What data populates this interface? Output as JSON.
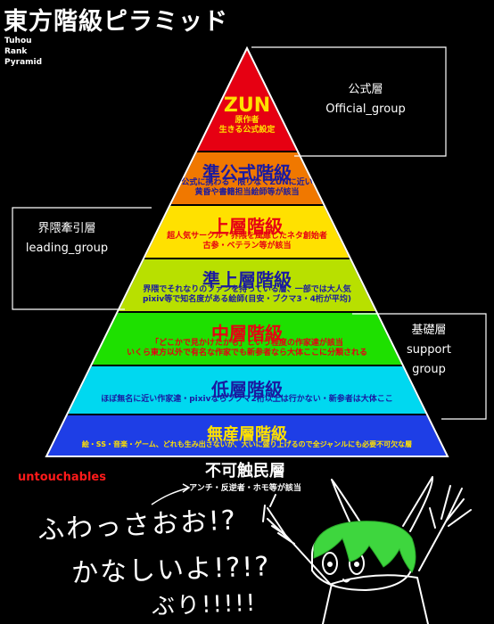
{
  "title": "東方階級ピラミッド",
  "subtitle": [
    "Tuhou",
    "Rank",
    "Pyramid"
  ],
  "tiers": [
    {
      "name": "ZUN",
      "desc": [
        "原作者",
        "生きる公式設定"
      ],
      "color": "#e60012",
      "name_color": "#ffe100",
      "desc_color": "#ffe100"
    },
    {
      "name": "準公式階級",
      "desc": [
        "公式に携わる・限りなくZUNに近い",
        "黄昏や書籍担当絵師等が該当"
      ],
      "color": "#f07800",
      "name_color": "#1a1aa0",
      "desc_color": "#1a1aa0"
    },
    {
      "name": "上層階級",
      "desc": [
        "超人気サークル・界隈を風靡したネタ創始者",
        "古参・ベテラン等が該当"
      ],
      "color": "#ffe100",
      "name_color": "#e60012",
      "desc_color": "#e60012"
    },
    {
      "name": "準上層階級",
      "desc": [
        "界隈でそれなりのファンを持っている層、一部では大人気",
        "pixiv等で知名度がある絵師(目安・ブクマ3・4桁が平均)"
      ],
      "color": "#b8e000",
      "name_color": "#1a1aa0",
      "desc_color": "#1a1aa0"
    },
    {
      "name": "中層階級",
      "desc": [
        "「どこかで見かけたかも」という程度の作家達が該当",
        "いくら東方以外で有名な作家でも新参者なら大体ここに分類される"
      ],
      "color": "#1ee000",
      "name_color": "#e60012",
      "desc_color": "#e60012"
    },
    {
      "name": "低層階級",
      "desc": [
        "ほぼ無名に近い作家達・pixivならブクマ2桁以上は行かない・新参者は大体ここ"
      ],
      "color": "#00d8f0",
      "name_color": "#1a1aa0",
      "desc_color": "#1a1aa0"
    },
    {
      "name": "無産層階級",
      "desc": [
        "絵・SS・音楽・ゲーム、どれも生み出さないが、大いに盛り上げるので全ジャンルにも必要不可欠な層"
      ],
      "color": "#1e3ee6",
      "name_color": "#ffe100",
      "desc_color": "#ffe100"
    }
  ],
  "groups": {
    "official": {
      "jp": "公式層",
      "en": "Official_group"
    },
    "leading": {
      "jp": "界隈牽引層",
      "en": "leading_group"
    },
    "support": {
      "jp": "基礎層",
      "en1": "support",
      "en2": "group"
    }
  },
  "bottom": {
    "name": "不可触民層",
    "desc": "アンチ・反逆者・ホモ等が該当",
    "side_label": "untouchables"
  },
  "handwriting": [
    "ふわっさおお!?",
    "かなしいよ!?!?",
    "ぶり!!!!!"
  ]
}
